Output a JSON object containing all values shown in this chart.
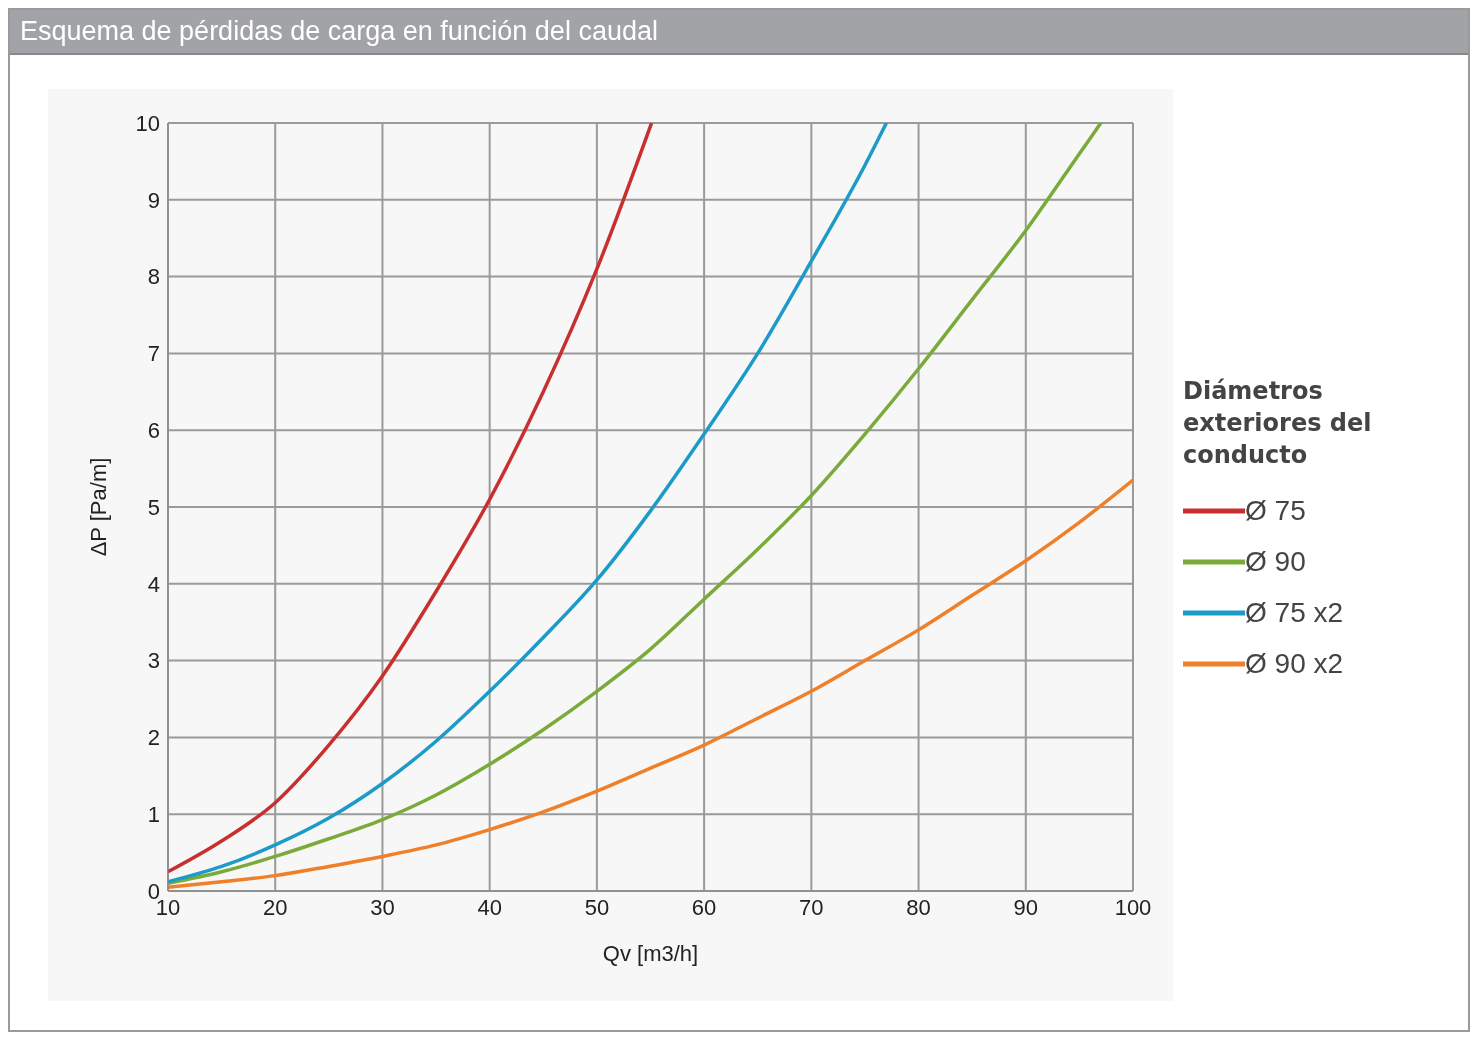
{
  "chart_data": {
    "type": "line",
    "title": "Esquema de pérdidas de carga en función del caudal",
    "xlabel": "Qv [m3/h]",
    "ylabel": "ΔP [Pa/m]",
    "legend_title": "Diámetros exteriores del conducto",
    "xlim": [
      10,
      100
    ],
    "xticks": [
      10,
      20,
      30,
      40,
      50,
      60,
      70,
      80,
      90,
      100
    ],
    "ylim": [
      0,
      10
    ],
    "yticks": [
      0,
      1,
      2,
      3,
      4,
      5,
      6,
      7,
      8,
      9,
      10
    ],
    "grid": true,
    "legend": "right",
    "marker": "none",
    "line_style": "solid",
    "series": [
      {
        "name": "Ø 75",
        "color": "#c8302f",
        "x": [
          10,
          15,
          20,
          25,
          30,
          35,
          40,
          45,
          50,
          55.1
        ],
        "values": [
          0.25,
          0.65,
          1.15,
          1.9,
          2.8,
          3.9,
          5.1,
          6.5,
          8.1,
          10
        ]
      },
      {
        "name": "Ø 90",
        "color": "#7aab3a",
        "x": [
          10,
          15,
          20,
          25,
          30,
          35,
          40,
          45,
          50,
          55,
          60,
          65,
          70,
          75,
          80,
          85,
          90,
          95,
          97
        ],
        "values": [
          0.1,
          0.25,
          0.45,
          0.68,
          0.93,
          1.25,
          1.65,
          2.1,
          2.6,
          3.15,
          3.8,
          4.45,
          5.15,
          5.95,
          6.8,
          7.7,
          8.6,
          9.6,
          10
        ]
      },
      {
        "name": "Ø 75 x2",
        "color": "#1d9bc8",
        "x": [
          10,
          15,
          20,
          25,
          30,
          35,
          40,
          45,
          50,
          55,
          60,
          65,
          70,
          75,
          77
        ],
        "values": [
          0.12,
          0.32,
          0.6,
          0.95,
          1.4,
          1.95,
          2.6,
          3.3,
          4.05,
          4.95,
          5.95,
          7.0,
          8.2,
          9.45,
          10
        ]
      },
      {
        "name": "Ø 90 x2",
        "color": "#f07f2a",
        "x": [
          10,
          15,
          20,
          25,
          30,
          35,
          40,
          45,
          50,
          55,
          60,
          65,
          70,
          75,
          80,
          85,
          90,
          95,
          100
        ],
        "values": [
          0.05,
          0.12,
          0.2,
          0.32,
          0.45,
          0.6,
          0.8,
          1.03,
          1.3,
          1.6,
          1.9,
          2.25,
          2.6,
          3.0,
          3.4,
          3.85,
          4.3,
          4.8,
          5.35
        ]
      }
    ]
  }
}
